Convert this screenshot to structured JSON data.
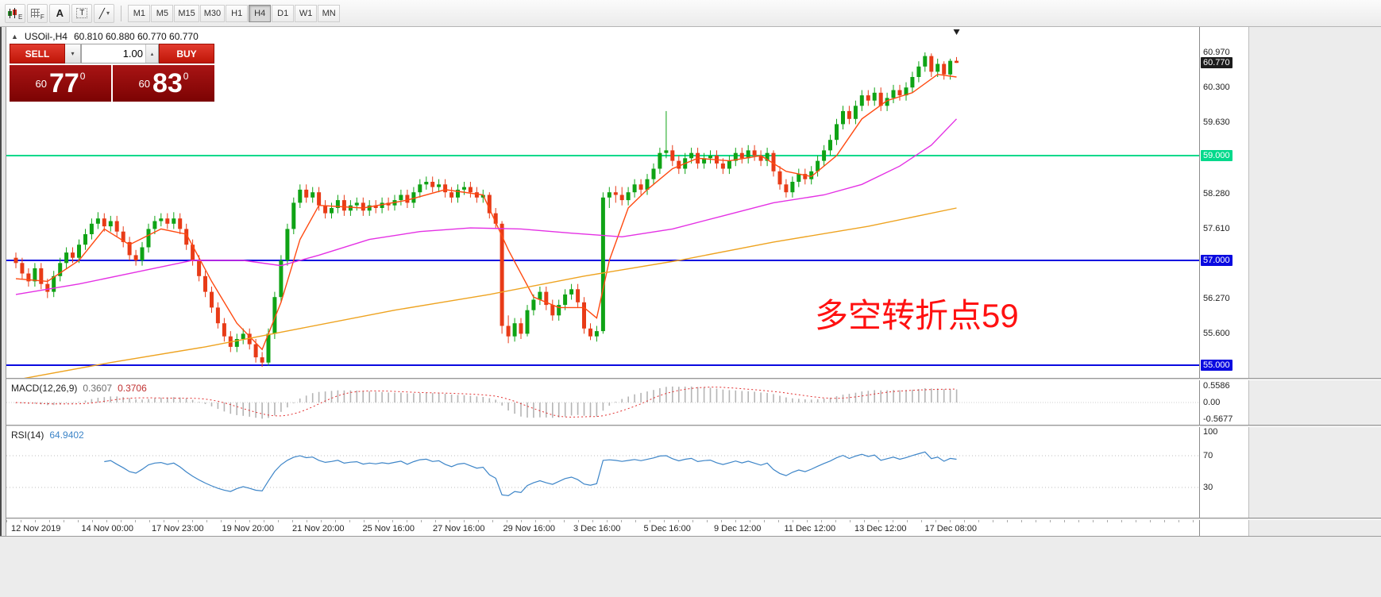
{
  "toolbar": {
    "tools": [
      {
        "label": "E"
      },
      {
        "label": "F"
      },
      {
        "glyph": "A"
      },
      {
        "glyph": "T"
      },
      {
        "glyph": "╱",
        "caret": "▾"
      }
    ],
    "timeframes": [
      "M1",
      "M5",
      "M15",
      "M30",
      "H1",
      "H4",
      "D1",
      "W1",
      "MN"
    ],
    "active_timeframe": "H4"
  },
  "chart_header": {
    "collapse_arrow": "▲",
    "symbol": "USOil-,H4",
    "ohlc": "60.810 60.880 60.770 60.770"
  },
  "trade_panel": {
    "sell_label": "SELL",
    "buy_label": "BUY",
    "volume_value": "1.00",
    "dropdown_arrow": "▾",
    "spinner_arrow": "▴",
    "sell_price": {
      "small": "60",
      "big": "77",
      "sup": "0"
    },
    "buy_price": {
      "small": "60",
      "big": "83",
      "sup": "0"
    }
  },
  "annotation": {
    "text": "多空转折点59",
    "color": "#ff1111"
  },
  "indicators": {
    "macd": {
      "label": "MACD(12,26,9)",
      "value_main": "0.3607",
      "value_signal": "0.3706",
      "params": [
        12,
        26,
        9
      ],
      "axis": [
        {
          "text": "0.5586",
          "v": 0.5586
        },
        {
          "text": "0.00",
          "v": 0
        },
        {
          "text": "-0.5677",
          "v": -0.5677
        }
      ]
    },
    "rsi": {
      "label": "RSI(14)",
      "value": "64.9402",
      "period": 14,
      "levels": [
        70,
        30
      ],
      "axis": [
        {
          "text": "100",
          "v": 100
        },
        {
          "text": "70",
          "v": 70
        },
        {
          "text": "30",
          "v": 30
        }
      ]
    }
  },
  "chart_data": {
    "type": "candlestick",
    "symbol": "USOil-",
    "timeframe": "H4",
    "last_ohlc": [
      60.81,
      60.88,
      60.77,
      60.77
    ],
    "colors": {
      "bull": "#0fa315",
      "bear": "#e83b17"
    },
    "hlines": [
      {
        "price": 59.0,
        "color": "#00d98b",
        "label": "59.000"
      },
      {
        "price": 57.0,
        "color": "#0a0ae0",
        "label": "57.000"
      },
      {
        "price": 55.0,
        "color": "#0a0ae0",
        "label": "55.000"
      }
    ],
    "price_axis": [
      {
        "text": "60.970",
        "price": 60.97
      },
      {
        "text": "60.770",
        "price": 60.77,
        "bg": "#1c1c1c",
        "fg": "#ffffff"
      },
      {
        "text": "60.300",
        "price": 60.3
      },
      {
        "text": "59.630",
        "price": 59.63
      },
      {
        "text": "59.000",
        "price": 59.0,
        "bg": "#00d98b",
        "fg": "#ffffff"
      },
      {
        "text": "58.280",
        "price": 58.28
      },
      {
        "text": "57.610",
        "price": 57.61
      },
      {
        "text": "57.000",
        "price": 57.0,
        "bg": "#0a0ae0",
        "fg": "#ffffff"
      },
      {
        "text": "56.270",
        "price": 56.27
      },
      {
        "text": "55.600",
        "price": 55.6
      },
      {
        "text": "55.000",
        "price": 55.0,
        "bg": "#0a0ae0",
        "fg": "#ffffff"
      }
    ],
    "moving_averages": [
      {
        "name": "fast-ma",
        "color": "#ff4a11",
        "points": [
          [
            0,
            56.65
          ],
          [
            5,
            56.6
          ],
          [
            10,
            57.0
          ],
          [
            14,
            57.6
          ],
          [
            18,
            57.3
          ],
          [
            23,
            57.6
          ],
          [
            27,
            57.5
          ],
          [
            31,
            56.6
          ],
          [
            35,
            55.8
          ],
          [
            39,
            55.3
          ],
          [
            42,
            56.2
          ],
          [
            45,
            57.4
          ],
          [
            48,
            58.05
          ],
          [
            55,
            58.0
          ],
          [
            62,
            58.15
          ],
          [
            68,
            58.35
          ],
          [
            74,
            58.25
          ],
          [
            78,
            57.2
          ],
          [
            82,
            56.3
          ],
          [
            86,
            56.1
          ],
          [
            90,
            56.1
          ],
          [
            92,
            55.9
          ],
          [
            94,
            57.0
          ],
          [
            97,
            58.0
          ],
          [
            100,
            58.35
          ],
          [
            104,
            58.75
          ],
          [
            108,
            58.95
          ],
          [
            113,
            58.9
          ],
          [
            118,
            59.0
          ],
          [
            122,
            58.7
          ],
          [
            126,
            58.6
          ],
          [
            130,
            59.0
          ],
          [
            134,
            59.7
          ],
          [
            138,
            60.05
          ],
          [
            142,
            60.2
          ],
          [
            146,
            60.55
          ],
          [
            149,
            60.5
          ]
        ]
      },
      {
        "name": "mid-ma",
        "color": "#e431e4",
        "points": [
          [
            0,
            56.35
          ],
          [
            10,
            56.55
          ],
          [
            20,
            56.8
          ],
          [
            28,
            57.0
          ],
          [
            36,
            57.0
          ],
          [
            42,
            56.9
          ],
          [
            48,
            57.1
          ],
          [
            56,
            57.4
          ],
          [
            64,
            57.55
          ],
          [
            72,
            57.62
          ],
          [
            80,
            57.6
          ],
          [
            88,
            57.52
          ],
          [
            96,
            57.45
          ],
          [
            104,
            57.6
          ],
          [
            112,
            57.85
          ],
          [
            120,
            58.1
          ],
          [
            128,
            58.25
          ],
          [
            134,
            58.45
          ],
          [
            140,
            58.8
          ],
          [
            145,
            59.2
          ],
          [
            149,
            59.7
          ]
        ]
      },
      {
        "name": "slow-ma",
        "color": "#eea320",
        "points": [
          [
            0,
            54.72
          ],
          [
            15,
            55.05
          ],
          [
            30,
            55.35
          ],
          [
            45,
            55.7
          ],
          [
            60,
            56.05
          ],
          [
            75,
            56.35
          ],
          [
            90,
            56.7
          ],
          [
            105,
            57.0
          ],
          [
            120,
            57.35
          ],
          [
            135,
            57.65
          ],
          [
            149,
            58.0
          ]
        ]
      }
    ],
    "candles": [
      [
        57.05,
        57.15,
        56.85,
        56.95
      ],
      [
        56.95,
        57.05,
        56.65,
        56.75
      ],
      [
        56.75,
        56.85,
        56.5,
        56.6
      ],
      [
        56.6,
        56.95,
        56.5,
        56.85
      ],
      [
        56.85,
        56.95,
        56.45,
        56.55
      ],
      [
        56.55,
        56.65,
        56.28,
        56.4
      ],
      [
        56.4,
        56.8,
        56.3,
        56.7
      ],
      [
        56.7,
        57.05,
        56.6,
        56.95
      ],
      [
        56.95,
        57.25,
        56.85,
        57.15
      ],
      [
        57.15,
        57.25,
        56.95,
        57.05
      ],
      [
        57.05,
        57.4,
        56.95,
        57.3
      ],
      [
        57.3,
        57.6,
        57.2,
        57.5
      ],
      [
        57.5,
        57.8,
        57.4,
        57.7
      ],
      [
        57.7,
        57.92,
        57.6,
        57.8
      ],
      [
        57.8,
        57.9,
        57.55,
        57.65
      ],
      [
        57.65,
        57.85,
        57.55,
        57.75
      ],
      [
        57.75,
        57.85,
        57.45,
        57.55
      ],
      [
        57.55,
        57.65,
        57.25,
        57.35
      ],
      [
        57.35,
        57.45,
        57.0,
        57.1
      ],
      [
        57.1,
        57.2,
        56.9,
        57.0
      ],
      [
        57.0,
        57.35,
        56.9,
        57.25
      ],
      [
        57.25,
        57.7,
        57.15,
        57.6
      ],
      [
        57.6,
        57.85,
        57.5,
        57.75
      ],
      [
        57.75,
        57.9,
        57.65,
        57.8
      ],
      [
        57.8,
        57.9,
        57.6,
        57.7
      ],
      [
        57.7,
        57.92,
        57.6,
        57.8
      ],
      [
        57.8,
        57.9,
        57.5,
        57.6
      ],
      [
        57.6,
        57.7,
        57.2,
        57.3
      ],
      [
        57.3,
        57.4,
        56.9,
        57.0
      ],
      [
        57.0,
        57.1,
        56.6,
        56.7
      ],
      [
        56.7,
        56.8,
        56.3,
        56.4
      ],
      [
        56.4,
        56.5,
        56.0,
        56.1
      ],
      [
        56.1,
        56.2,
        55.7,
        55.8
      ],
      [
        55.8,
        55.9,
        55.45,
        55.55
      ],
      [
        55.55,
        55.65,
        55.25,
        55.35
      ],
      [
        55.35,
        55.6,
        55.25,
        55.5
      ],
      [
        55.5,
        55.7,
        55.4,
        55.6
      ],
      [
        55.6,
        55.7,
        55.3,
        55.4
      ],
      [
        55.4,
        55.5,
        55.05,
        55.15
      ],
      [
        55.15,
        55.25,
        54.97,
        55.05
      ],
      [
        55.05,
        55.7,
        54.99,
        55.6
      ],
      [
        55.6,
        56.4,
        55.5,
        56.3
      ],
      [
        56.3,
        57.1,
        56.2,
        57.0
      ],
      [
        57.0,
        57.7,
        56.9,
        57.6
      ],
      [
        57.6,
        58.2,
        57.5,
        58.1
      ],
      [
        58.1,
        58.45,
        58.0,
        58.35
      ],
      [
        58.35,
        58.45,
        58.1,
        58.2
      ],
      [
        58.2,
        58.4,
        58.1,
        58.3
      ],
      [
        58.3,
        58.4,
        57.95,
        58.05
      ],
      [
        58.05,
        58.15,
        57.8,
        57.9
      ],
      [
        57.9,
        58.1,
        57.8,
        58.0
      ],
      [
        58.0,
        58.25,
        57.9,
        58.15
      ],
      [
        58.15,
        58.25,
        57.85,
        57.95
      ],
      [
        57.95,
        58.15,
        57.85,
        58.05
      ],
      [
        58.05,
        58.2,
        57.95,
        58.1
      ],
      [
        58.1,
        58.2,
        57.85,
        57.95
      ],
      [
        57.95,
        58.15,
        57.85,
        58.05
      ],
      [
        58.05,
        58.15,
        57.9,
        58.0
      ],
      [
        58.0,
        58.2,
        57.9,
        58.1
      ],
      [
        58.1,
        58.2,
        57.95,
        58.05
      ],
      [
        58.05,
        58.25,
        57.95,
        58.15
      ],
      [
        58.15,
        58.35,
        58.05,
        58.25
      ],
      [
        58.25,
        58.35,
        58.0,
        58.1
      ],
      [
        58.1,
        58.4,
        58.0,
        58.3
      ],
      [
        58.3,
        58.55,
        58.2,
        58.45
      ],
      [
        58.45,
        58.6,
        58.35,
        58.5
      ],
      [
        58.5,
        58.6,
        58.3,
        58.4
      ],
      [
        58.4,
        58.55,
        58.3,
        58.45
      ],
      [
        58.45,
        58.55,
        58.2,
        58.3
      ],
      [
        58.3,
        58.4,
        58.1,
        58.2
      ],
      [
        58.2,
        58.45,
        58.1,
        58.35
      ],
      [
        58.35,
        58.5,
        58.25,
        58.4
      ],
      [
        58.4,
        58.5,
        58.2,
        58.3
      ],
      [
        58.3,
        58.4,
        58.1,
        58.2
      ],
      [
        58.2,
        58.35,
        58.1,
        58.25
      ],
      [
        58.25,
        58.3,
        57.8,
        57.9
      ],
      [
        57.9,
        58.0,
        57.6,
        57.7
      ],
      [
        57.7,
        57.75,
        55.6,
        55.75
      ],
      [
        55.75,
        55.95,
        55.42,
        55.55
      ],
      [
        55.55,
        55.9,
        55.45,
        55.8
      ],
      [
        55.8,
        55.9,
        55.5,
        55.6
      ],
      [
        55.6,
        56.15,
        55.55,
        56.05
      ],
      [
        56.05,
        56.35,
        55.95,
        56.25
      ],
      [
        56.25,
        56.5,
        56.15,
        56.4
      ],
      [
        56.4,
        56.5,
        56.05,
        56.15
      ],
      [
        56.15,
        56.25,
        55.85,
        55.95
      ],
      [
        55.95,
        56.25,
        55.85,
        56.15
      ],
      [
        56.15,
        56.45,
        56.05,
        56.35
      ],
      [
        56.35,
        56.55,
        56.25,
        56.45
      ],
      [
        56.45,
        56.55,
        56.1,
        56.2
      ],
      [
        56.2,
        56.3,
        55.6,
        55.7
      ],
      [
        55.7,
        55.8,
        55.48,
        55.55
      ],
      [
        55.55,
        55.75,
        55.45,
        55.65
      ],
      [
        55.65,
        58.3,
        55.6,
        58.2
      ],
      [
        58.2,
        58.4,
        58.0,
        58.3
      ],
      [
        58.3,
        58.42,
        58.1,
        58.25
      ],
      [
        58.25,
        58.4,
        58.05,
        58.15
      ],
      [
        58.15,
        58.4,
        58.05,
        58.3
      ],
      [
        58.3,
        58.55,
        58.2,
        58.45
      ],
      [
        58.45,
        58.55,
        58.25,
        58.35
      ],
      [
        58.35,
        58.65,
        58.25,
        58.55
      ],
      [
        58.55,
        58.85,
        58.45,
        58.75
      ],
      [
        58.75,
        59.15,
        58.65,
        59.05
      ],
      [
        59.05,
        59.85,
        58.95,
        59.1
      ],
      [
        59.1,
        59.2,
        58.8,
        58.9
      ],
      [
        58.9,
        59.0,
        58.65,
        58.75
      ],
      [
        58.75,
        59.05,
        58.65,
        58.95
      ],
      [
        58.95,
        59.15,
        58.85,
        59.05
      ],
      [
        59.05,
        59.15,
        58.75,
        58.85
      ],
      [
        58.85,
        59.05,
        58.75,
        58.95
      ],
      [
        58.95,
        59.1,
        58.85,
        59.0
      ],
      [
        59.0,
        59.1,
        58.75,
        58.85
      ],
      [
        58.85,
        58.95,
        58.65,
        58.75
      ],
      [
        58.75,
        59.0,
        58.65,
        58.9
      ],
      [
        58.9,
        59.15,
        58.8,
        59.05
      ],
      [
        59.05,
        59.15,
        58.85,
        58.95
      ],
      [
        58.95,
        59.2,
        58.85,
        59.1
      ],
      [
        59.1,
        59.2,
        58.9,
        59.0
      ],
      [
        59.0,
        59.1,
        58.8,
        58.9
      ],
      [
        58.9,
        59.15,
        58.8,
        59.05
      ],
      [
        59.05,
        59.1,
        58.6,
        58.7
      ],
      [
        58.7,
        58.8,
        58.35,
        58.45
      ],
      [
        58.45,
        58.55,
        58.2,
        58.3
      ],
      [
        58.3,
        58.6,
        58.2,
        58.5
      ],
      [
        58.5,
        58.75,
        58.4,
        58.65
      ],
      [
        58.65,
        58.75,
        58.45,
        58.55
      ],
      [
        58.55,
        58.8,
        58.45,
        58.7
      ],
      [
        58.7,
        59.0,
        58.6,
        58.9
      ],
      [
        58.9,
        59.2,
        58.8,
        59.1
      ],
      [
        59.1,
        59.4,
        59.0,
        59.3
      ],
      [
        59.3,
        59.7,
        59.2,
        59.6
      ],
      [
        59.6,
        59.95,
        59.5,
        59.85
      ],
      [
        59.85,
        59.95,
        59.6,
        59.7
      ],
      [
        59.7,
        60.05,
        59.6,
        59.95
      ],
      [
        59.95,
        60.25,
        59.85,
        60.15
      ],
      [
        60.15,
        60.25,
        59.95,
        60.05
      ],
      [
        60.05,
        60.3,
        59.95,
        60.2
      ],
      [
        60.2,
        60.3,
        59.85,
        59.95
      ],
      [
        59.95,
        60.2,
        59.85,
        60.1
      ],
      [
        60.1,
        60.35,
        60.0,
        60.25
      ],
      [
        60.25,
        60.35,
        60.05,
        60.15
      ],
      [
        60.15,
        60.4,
        60.05,
        60.3
      ],
      [
        60.3,
        60.6,
        60.2,
        60.5
      ],
      [
        60.5,
        60.8,
        60.4,
        60.7
      ],
      [
        60.7,
        60.97,
        60.6,
        60.9
      ],
      [
        60.9,
        60.95,
        60.5,
        60.6
      ],
      [
        60.6,
        60.85,
        60.5,
        60.75
      ],
      [
        60.75,
        60.8,
        60.45,
        60.55
      ],
      [
        60.55,
        60.85,
        60.45,
        60.81
      ],
      [
        60.81,
        60.88,
        60.77,
        60.77
      ]
    ],
    "time_axis": [
      "12 Nov 2019",
      "14 Nov 00:00",
      "17 Nov 23:00",
      "19 Nov 20:00",
      "21 Nov 20:00",
      "25 Nov 16:00",
      "27 Nov 16:00",
      "29 Nov 16:00",
      "3 Dec 16:00",
      "5 Dec 16:00",
      "9 Dec 12:00",
      "11 Dec 12:00",
      "13 Dec 12:00",
      "17 Dec 08:00"
    ]
  }
}
